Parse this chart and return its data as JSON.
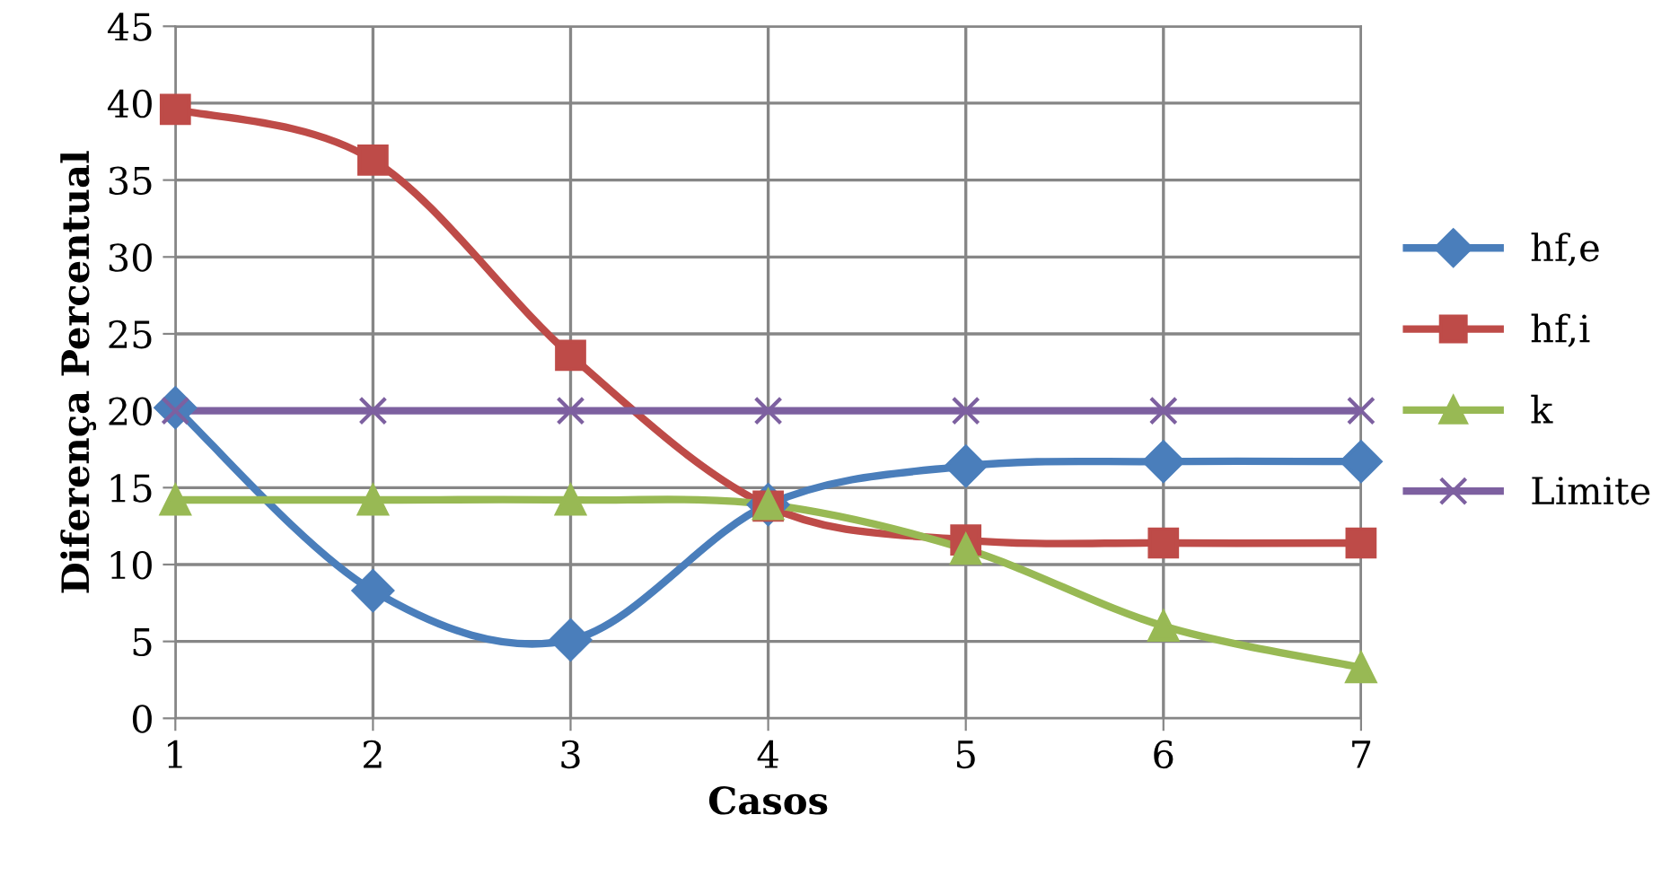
{
  "chart_data": {
    "type": "line",
    "xlabel": "Casos",
    "ylabel": "Diferença Percentual",
    "x": [
      1,
      2,
      3,
      4,
      5,
      6,
      7
    ],
    "xlim": [
      1,
      7
    ],
    "xticks": [
      1,
      2,
      3,
      4,
      5,
      6,
      7
    ],
    "ylim": [
      0,
      45
    ],
    "yticks": [
      0,
      5,
      10,
      15,
      20,
      25,
      30,
      35,
      40,
      45
    ],
    "grid": true,
    "legend": "right",
    "line_style": "solid",
    "series": [
      {
        "name": "hf,e",
        "color": "#4a7ebb",
        "marker": "diamond",
        "values": [
          20.2,
          8.3,
          5.1,
          13.9,
          16.4,
          16.7,
          16.7
        ]
      },
      {
        "name": "hf,i",
        "color": "#be4b48",
        "marker": "square",
        "values": [
          39.6,
          36.3,
          23.6,
          13.8,
          11.6,
          11.4,
          11.4
        ]
      },
      {
        "name": "k",
        "color": "#98b954",
        "marker": "triangle",
        "values": [
          14.2,
          14.2,
          14.2,
          13.9,
          11.0,
          6.0,
          3.3
        ]
      },
      {
        "name": "Limite",
        "color": "#7d60a0",
        "marker": "cross",
        "values": [
          20,
          20,
          20,
          20,
          20,
          20,
          20
        ]
      }
    ]
  }
}
